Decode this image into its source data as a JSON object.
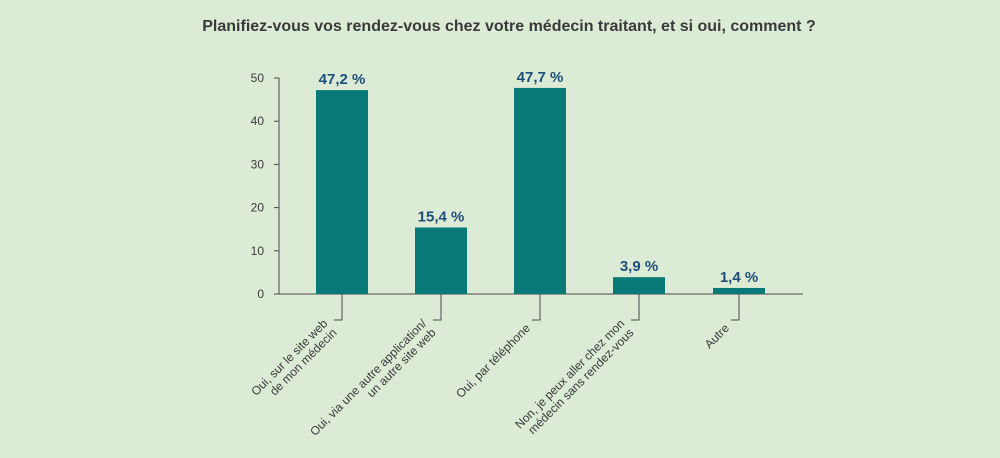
{
  "chart_data": {
    "type": "bar",
    "title": "Planifiez-vous vos rendez-vous chez votre médecin traitant, et si oui, comment ?",
    "categories": [
      [
        "Oui, sur le site web",
        "de mon médecin"
      ],
      [
        "Oui, via une autre application/",
        "un autre site web"
      ],
      [
        "Oui, par téléphone"
      ],
      [
        "Non, je peux aller chez mon",
        "médecin sans rendez-vous"
      ],
      [
        "Autre"
      ]
    ],
    "values": [
      47.2,
      15.4,
      47.7,
      3.9,
      1.4
    ],
    "value_labels": [
      "47,2 %",
      "15,4 %",
      "47,7 %",
      "3,9 %",
      "1,4 %"
    ],
    "yticks": [
      "0",
      "10",
      "20",
      "30",
      "40",
      "50"
    ],
    "ylim": [
      0,
      50
    ],
    "grid": false,
    "colors": {
      "background": "#dcebd6",
      "bar": "#0a7a78",
      "value_label": "#1f4e79",
      "text": "#3a3a3a",
      "axis": "#4a4a4a"
    }
  }
}
